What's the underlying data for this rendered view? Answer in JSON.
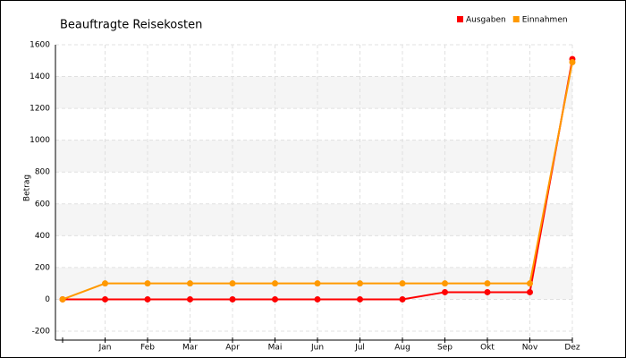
{
  "chart_data": {
    "type": "line",
    "title": "Beauftragte Reisekosten",
    "y_label": "Betrag",
    "categories": [
      null,
      "Jan",
      "Feb",
      "Mar",
      "Apr",
      "Mai",
      "Jun",
      "Jul",
      "Aug",
      "Sep",
      "Okt",
      "Nov",
      "Dez"
    ],
    "series": [
      {
        "name": "Ausgaben",
        "color": "#ff0000",
        "values": [
          0,
          0,
          0,
          0,
          0,
          0,
          0,
          0,
          0,
          45,
          45,
          45,
          1510
        ]
      },
      {
        "name": "Einnahmen",
        "color": "#ff9900",
        "values": [
          0,
          100,
          100,
          100,
          100,
          100,
          100,
          100,
          100,
          100,
          100,
          100,
          1490
        ]
      }
    ],
    "ylim": [
      -200,
      1600
    ],
    "yticks": [
      -200,
      0,
      200,
      400,
      600,
      800,
      1000,
      1200,
      1400,
      1600
    ],
    "grid": true,
    "legend": "top-right"
  }
}
